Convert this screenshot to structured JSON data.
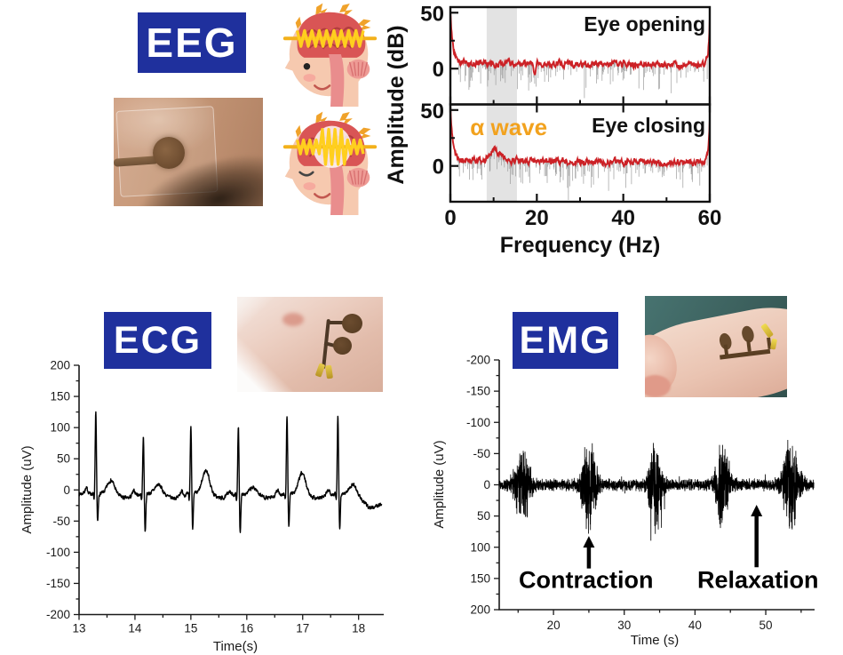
{
  "figure": {
    "background": "#ffffff",
    "accent_blue": "#1f309d",
    "sections": {
      "eeg": {
        "tag": "EEG",
        "photo": "forehead-electrode-photo",
        "cartoons": [
          "head-brain-eye-open-icon",
          "head-brain-alpha-eye-closed-icon"
        ]
      },
      "ecg": {
        "tag": "ECG",
        "photo": "wrist-electrode-photo"
      },
      "emg": {
        "tag": "EMG",
        "photo": "forearm-electrode-photo"
      }
    }
  },
  "chart_data": [
    {
      "id": "eeg_spectra",
      "type": "line",
      "xlabel": "Frequency (Hz)",
      "ylabel": "Amplitude (dB)",
      "xlim": [
        0,
        60
      ],
      "ylim": [
        -32,
        55
      ],
      "x_ticks": [
        0,
        20,
        40,
        60
      ],
      "x_minor_ticks": [
        10,
        30,
        50
      ],
      "y_ticks": [
        0,
        50
      ],
      "y_minor_ticks": [
        25
      ],
      "line_color": "#cc2126",
      "noise_line_color": "#9d9d9d",
      "alpha_band_hz": [
        8.4,
        15.4
      ],
      "alpha_band_color": "#e3e3e3",
      "alpha_band_label": "α wave",
      "alpha_label_color": "#f2a21e",
      "alpha_label_center_hz": 13.5,
      "panels": [
        {
          "label": "Eye opening",
          "baseline_db": 5,
          "zero_hz_peak_db": 45,
          "sixty_hz_spike_db": 42,
          "alpha_bump_db": 0,
          "notch": {
            "hz": 19.5,
            "db": -10
          },
          "noise_db": 2.4
        },
        {
          "label": "Eye closing",
          "baseline_db": 5,
          "zero_hz_peak_db": 48,
          "sixty_hz_spike_db": 38,
          "alpha_bump_db": 9,
          "alpha_center_hz": 10.5,
          "noise_db": 2.4
        }
      ]
    },
    {
      "id": "ecg",
      "type": "line",
      "xlabel": "Time(s)",
      "ylabel": "Amplitude (uV)",
      "xlim": [
        13,
        18.45
      ],
      "ylim": [
        -200,
        200
      ],
      "x_ticks": [
        13,
        14,
        15,
        16,
        17,
        18
      ],
      "x_minor_step": 0.5,
      "y_ticks": [
        200,
        150,
        100,
        50,
        0,
        -50,
        -100,
        -150,
        -200
      ],
      "y_minor_step": 25,
      "line_color": "#000000",
      "baseline_uv": -6,
      "noise_uv": 3,
      "beats": [
        {
          "t_s": 13.3,
          "r_uv": 130,
          "s_uv": -48,
          "t_wave_uv": 22
        },
        {
          "t_s": 14.15,
          "r_uv": 92,
          "s_uv": -62,
          "t_wave_uv": 15
        },
        {
          "t_s": 15.0,
          "r_uv": 110,
          "s_uv": -55,
          "t_wave_uv": 38
        },
        {
          "t_s": 15.85,
          "r_uv": 110,
          "s_uv": -65,
          "t_wave_uv": 10
        },
        {
          "t_s": 16.72,
          "r_uv": 125,
          "s_uv": -52,
          "t_wave_uv": 33
        },
        {
          "t_s": 17.63,
          "r_uv": 128,
          "s_uv": -55,
          "t_wave_uv": 15
        }
      ]
    },
    {
      "id": "emg",
      "type": "line",
      "xlabel": "Time (s)",
      "ylabel": "Amplitude (uV)",
      "xlim": [
        12.33,
        56.9
      ],
      "ylim": [
        -200,
        200
      ],
      "y_axis_inverted": true,
      "x_ticks": [
        20,
        30,
        40,
        50
      ],
      "x_minor_ticks": [
        15,
        25,
        35,
        45,
        55
      ],
      "y_ticks": [
        -200,
        -150,
        -100,
        -50,
        0,
        50,
        100,
        150,
        200
      ],
      "y_minor_step": 25,
      "line_color": "#000000",
      "rest_noise_uv": 11,
      "bursts": [
        {
          "center_s": 15.6,
          "width_s": 2.6,
          "peak_uv": 70
        },
        {
          "center_s": 25.0,
          "width_s": 2.4,
          "peak_uv": 85
        },
        {
          "center_s": 34.4,
          "width_s": 2.2,
          "peak_uv": 78
        },
        {
          "center_s": 43.9,
          "width_s": 2.4,
          "peak_uv": 80
        },
        {
          "center_s": 53.6,
          "width_s": 2.8,
          "peak_uv": 78
        }
      ],
      "annotations": [
        {
          "text": "Contraction",
          "arrow_t_s": 25.0,
          "arrow_from_uv": 134,
          "arrow_to_uv": 82,
          "text_t_s": 24.6,
          "text_uv": 165
        },
        {
          "text": "Relaxation",
          "arrow_t_s": 48.7,
          "arrow_from_uv": 132,
          "arrow_to_uv": 32,
          "text_t_s": 48.9,
          "text_uv": 165
        }
      ]
    }
  ]
}
